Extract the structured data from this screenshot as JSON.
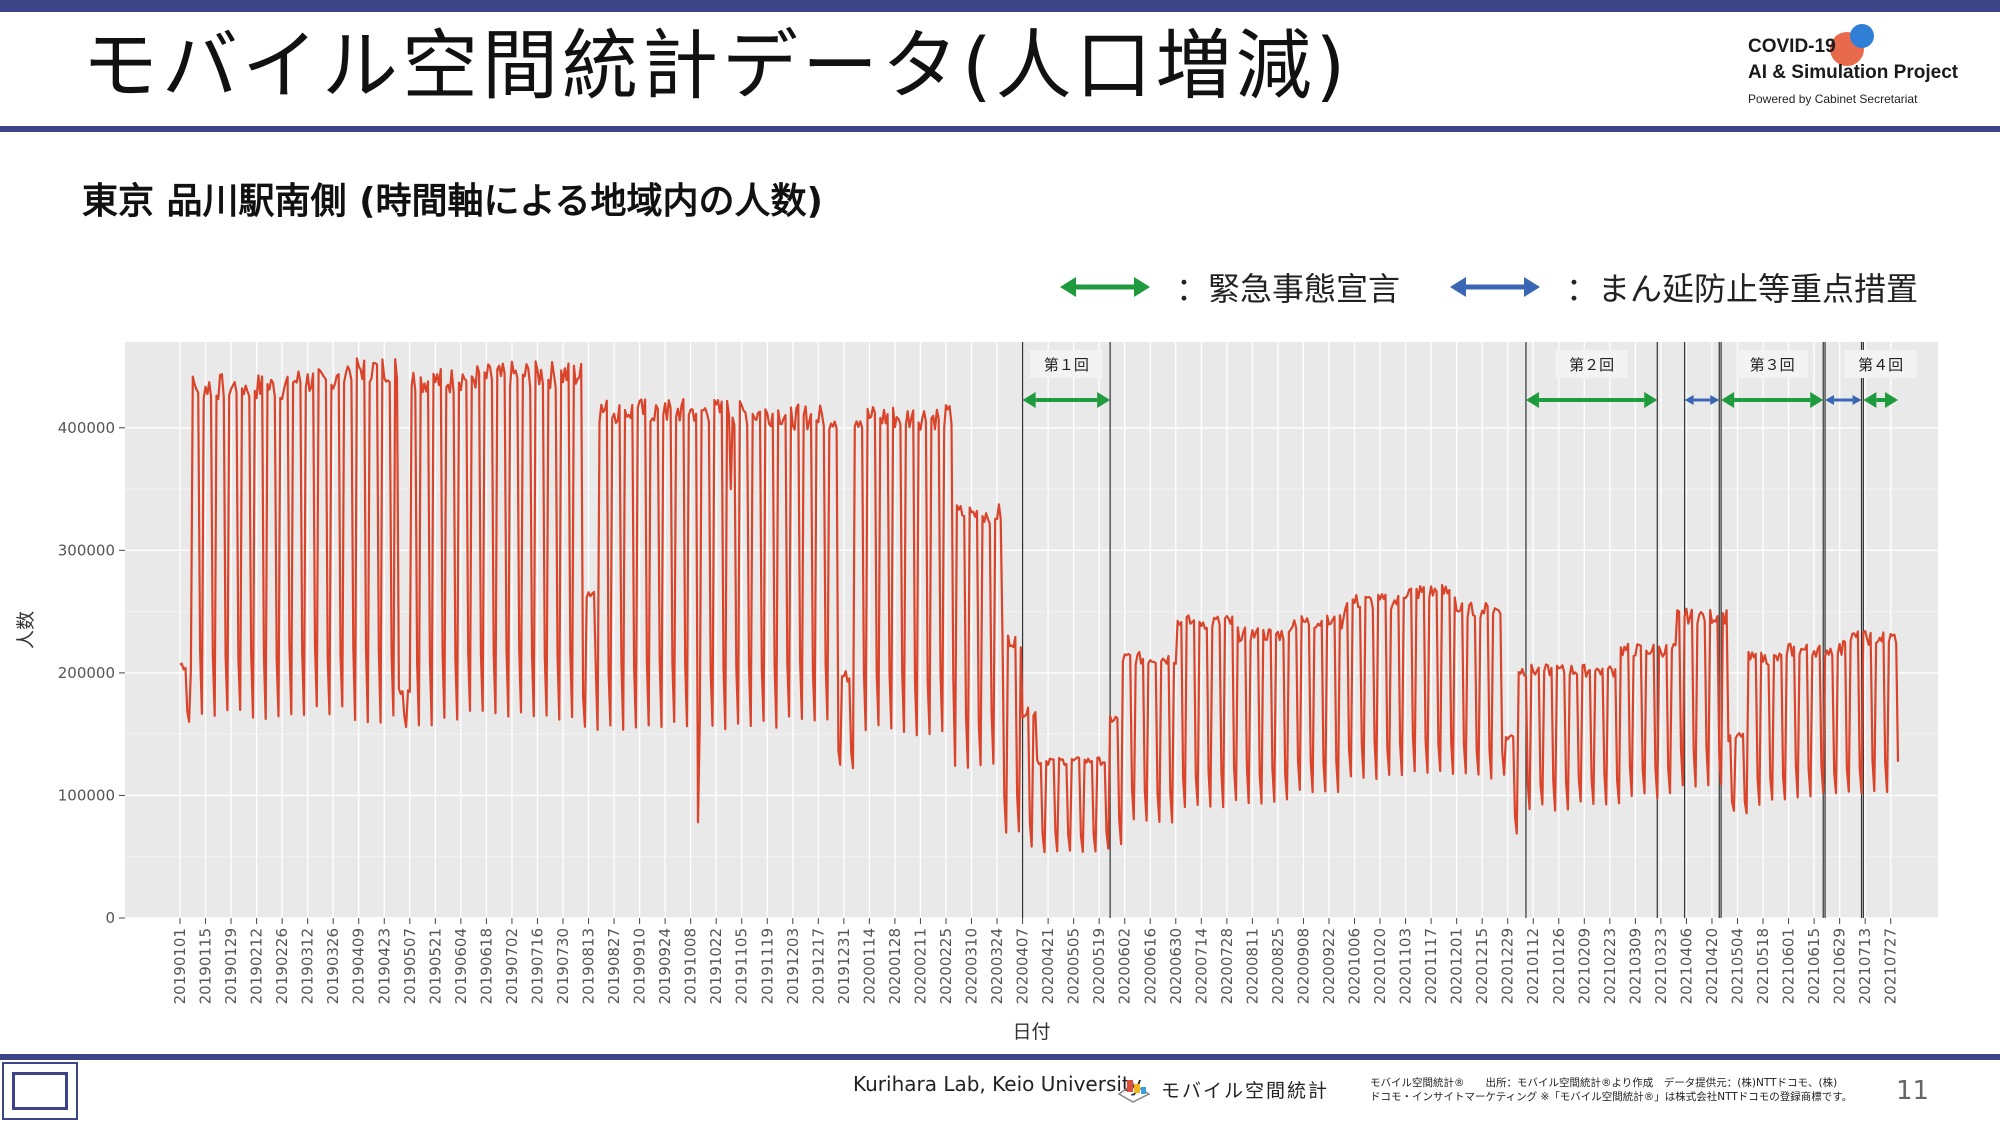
{
  "slide": {
    "title": "モバイル空間統計データ(人口増減)",
    "subtitle": "東京 品川駅南側 (時間軸による地域内の人数)",
    "page_number": "11"
  },
  "logo": {
    "line1": "COVID-19",
    "line2": "AI & Simulation Project",
    "line3": "Powered by Cabinet Secretariat"
  },
  "legend": {
    "emergency_label": "：緊急事態宣言",
    "priority_label": "：まん延防止等重点措置",
    "emergency_color": "#1f9a3f",
    "priority_color": "#3b66b4"
  },
  "footer": {
    "lab": "Kurihara Lab, Keio University",
    "brand": "モバイル空間統計",
    "source_line1": "モバイル空間統計®　　出所：モバイル空間統計®より作成　データ提供元：(株)NTTドコモ、(株)",
    "source_line2": "ドコモ・インサイトマーケティング ※「モバイル空間統計®」は株式会社NTTドコモの登録商標です。"
  },
  "chart_data": {
    "type": "line",
    "xlabel": "日付",
    "ylabel": "人数",
    "ylim": [
      0,
      470000
    ],
    "yticks": [
      0,
      100000,
      200000,
      300000,
      400000
    ],
    "ytick_labels": [
      "0",
      "100000",
      "200000",
      "300000",
      "400000"
    ],
    "xlim": [
      "20190101",
      "20210731"
    ],
    "xtick_labels": [
      "20190101",
      "20190115",
      "20190129",
      "20190212",
      "20190226",
      "20190312",
      "20190326",
      "20190409",
      "20190423",
      "20190507",
      "20190521",
      "20190604",
      "20190618",
      "20190702",
      "20190716",
      "20190730",
      "20190813",
      "20190827",
      "20190910",
      "20190924",
      "20191008",
      "20191022",
      "20191105",
      "20191119",
      "20191203",
      "20191217",
      "20191231",
      "20200114",
      "20200128",
      "20200211",
      "20200225",
      "20200310",
      "20200324",
      "20200407",
      "20200421",
      "20200505",
      "20200519",
      "20200602",
      "20200616",
      "20200630",
      "20200714",
      "20200728",
      "20200811",
      "20200825",
      "20200908",
      "20200922",
      "20201006",
      "20201020",
      "20201103",
      "20201117",
      "20201201",
      "20201215",
      "20201229",
      "20210112",
      "20210126",
      "20210209",
      "20210223",
      "20210309",
      "20210323",
      "20210406",
      "20210420",
      "20210504",
      "20210518",
      "20210601",
      "20210615",
      "20210629",
      "20210713",
      "20210727"
    ],
    "grid": true,
    "line_color": "#d9442b",
    "series": [
      {
        "values_note_free": true,
        "weekly_envelope": [
          {
            "start": "20190101",
            "weekday": 210000,
            "weekend": 160000,
            "profile": "ramp"
          },
          {
            "start": "20190108",
            "weekday": 440000,
            "weekend": 165000
          },
          {
            "start": "20190301",
            "weekday": 445000,
            "weekend": 168000
          },
          {
            "start": "20190401",
            "weekday": 455000,
            "weekend": 162000
          },
          {
            "start": "20190501",
            "weekday": 190000,
            "weekend": 160000
          },
          {
            "start": "20190508",
            "weekday": 445000,
            "weekend": 162000
          },
          {
            "start": "20190601",
            "weekday": 448000,
            "weekend": 165000
          },
          {
            "start": "20190701",
            "weekday": 450000,
            "weekend": 165000
          },
          {
            "start": "20190810",
            "weekday": 270000,
            "weekend": 160000
          },
          {
            "start": "20190817",
            "weekday": 420000,
            "weekend": 158000
          },
          {
            "start": "20191001",
            "weekday": 420000,
            "weekend": 158000
          },
          {
            "start": "20191101",
            "weekday": 418000,
            "weekend": 160000
          },
          {
            "start": "20191201",
            "weekday": 415000,
            "weekend": 160000
          },
          {
            "start": "20191228",
            "weekday": 200000,
            "weekend": 125000
          },
          {
            "start": "20200106",
            "weekday": 415000,
            "weekend": 155000
          },
          {
            "start": "20200201",
            "weekday": 415000,
            "weekend": 150000
          },
          {
            "start": "20200301",
            "weekday": 335000,
            "weekend": 125000
          },
          {
            "start": "20200327",
            "weekday": 230000,
            "weekend": 70000
          },
          {
            "start": "20200407",
            "weekday": 170000,
            "weekend": 60000
          },
          {
            "start": "20200415",
            "weekday": 130000,
            "weekend": 55000
          },
          {
            "start": "20200525",
            "weekday": 165000,
            "weekend": 60000
          },
          {
            "start": "20200601",
            "weekday": 215000,
            "weekend": 80000
          },
          {
            "start": "20200701",
            "weekday": 245000,
            "weekend": 90000
          },
          {
            "start": "20200801",
            "weekday": 235000,
            "weekend": 95000
          },
          {
            "start": "20200901",
            "weekday": 245000,
            "weekend": 105000
          },
          {
            "start": "20201001",
            "weekday": 262000,
            "weekend": 115000
          },
          {
            "start": "20201101",
            "weekday": 270000,
            "weekend": 118000
          },
          {
            "start": "20201201",
            "weekday": 255000,
            "weekend": 115000
          },
          {
            "start": "20201228",
            "weekday": 150000,
            "weekend": 70000
          },
          {
            "start": "20210104",
            "weekday": 205000,
            "weekend": 90000
          },
          {
            "start": "20210201",
            "weekday": 205000,
            "weekend": 95000
          },
          {
            "start": "20210301",
            "weekday": 222000,
            "weekend": 100000
          },
          {
            "start": "20210401",
            "weekday": 250000,
            "weekend": 110000
          },
          {
            "start": "20210429",
            "weekday": 150000,
            "weekend": 85000
          },
          {
            "start": "20210510",
            "weekday": 215000,
            "weekend": 95000
          },
          {
            "start": "20210601",
            "weekday": 222000,
            "weekend": 100000
          },
          {
            "start": "20210701",
            "weekday": 232000,
            "weekend": 102000
          }
        ]
      }
    ],
    "annotations": [
      {
        "label": "第１回",
        "type": "emergency",
        "start": "20200407",
        "end": "20200525"
      },
      {
        "label": "第２回",
        "type": "emergency",
        "start": "20210108",
        "end": "20210321"
      },
      {
        "label": "",
        "type": "priority",
        "start": "20210405",
        "end": "20210424"
      },
      {
        "label": "第３回",
        "type": "emergency",
        "start": "20210425",
        "end": "20210620"
      },
      {
        "label": "",
        "type": "priority",
        "start": "20210621",
        "end": "20210711"
      },
      {
        "label": "第４回",
        "type": "emergency",
        "start": "20210712",
        "end": "20210731"
      }
    ]
  }
}
